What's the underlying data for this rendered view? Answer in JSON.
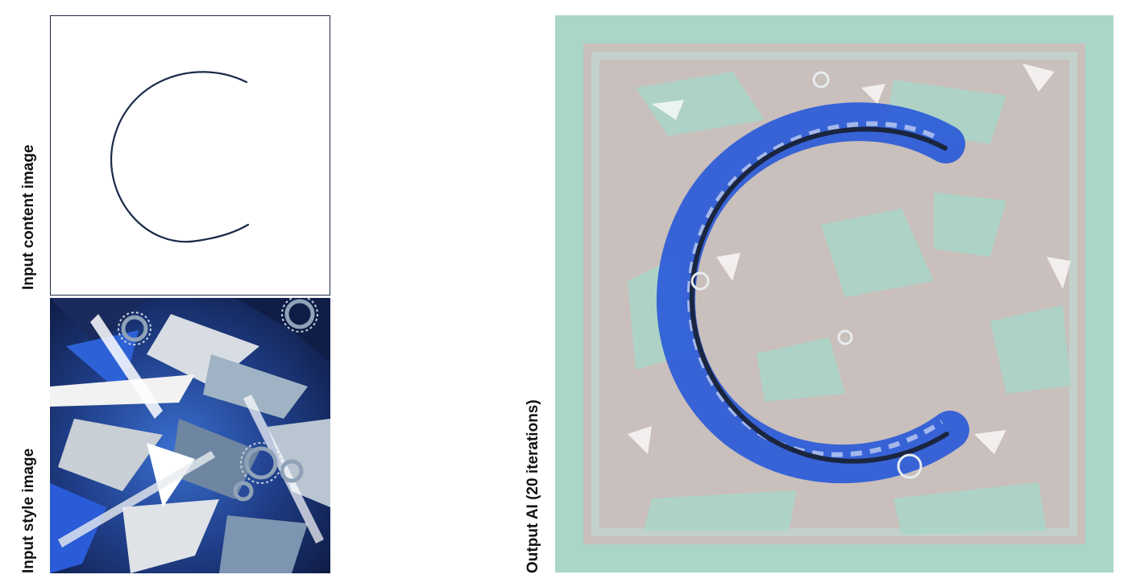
{
  "labels": {
    "content": "Input content image",
    "style": "Input style image",
    "output": "Output AI (20 iterations)"
  },
  "colors": {
    "navy": "#1a2a4a",
    "blue": "#2a5bd8",
    "mint": "#a9d6c8",
    "taupe": "#c9bfbc",
    "white": "#ffffff"
  }
}
